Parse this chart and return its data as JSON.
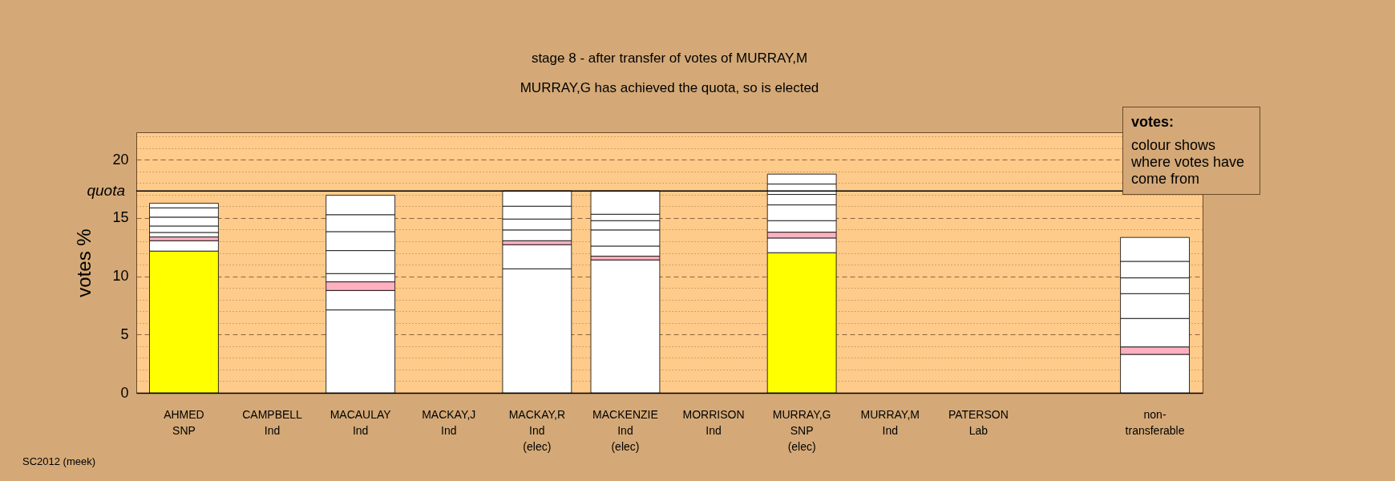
{
  "chart_data": {
    "type": "bar",
    "stacked": true,
    "title": "stage 8 - after transfer of votes of MURRAY,M",
    "subtitle": "MURRAY,G has achieved the quota, so is elected",
    "ylabel": "votes %",
    "categories": [
      "AHMED\nSNP",
      "CAMPBELL\nInd",
      "MACAULAY\nInd",
      "MACKAY,J\nInd",
      "MACKAY,R\nInd\n(elec)",
      "MACKENZIE\nInd\n(elec)",
      "MORRISON\nInd",
      "MURRAY,G\nSNP\n(elec)",
      "MURRAY,M\nInd",
      "PATERSON\nLab",
      null,
      "non-\ntransferable"
    ],
    "series": [
      {
        "values": [
          12.16,
          null,
          7.11,
          null,
          10.64,
          11.4,
          null,
          12.02,
          null,
          null,
          null,
          3.3
        ],
        "colors": [
          "#ffff00",
          null,
          "#ffffff",
          null,
          "#ffffff",
          "#ffffff",
          null,
          "#ffff00",
          null,
          null,
          null,
          "#ffffff"
        ]
      },
      {
        "values": [
          0.89,
          null,
          1.67,
          null,
          2.07,
          0.32,
          null,
          1.26,
          null,
          null,
          null,
          0.64
        ],
        "colors": [
          "#ffffff",
          null,
          "#ffffff",
          null,
          "#ffffff",
          "#ffb0c0",
          null,
          "#ffffff",
          null,
          null,
          null,
          "#ffb0c0"
        ]
      },
      {
        "values": [
          0.32,
          null,
          0.74,
          null,
          0.34,
          0.87,
          null,
          0.5,
          null,
          null,
          null,
          2.44
        ],
        "colors": [
          "#ffb0c0",
          null,
          "#ffb0c0",
          null,
          "#ffb0c0",
          "#ffffff",
          null,
          "#ffb0c0",
          null,
          null,
          null,
          "#ffffff"
        ]
      },
      {
        "values": [
          0.39,
          null,
          0.71,
          null,
          0.92,
          1.38,
          null,
          0.99,
          null,
          null,
          null,
          2.13
        ],
        "colors": [
          "#ffffff",
          null,
          "#ffffff",
          null,
          "#ffffff",
          "#ffffff",
          null,
          "#ffffff",
          null,
          null,
          null,
          "#ffffff"
        ]
      },
      {
        "values": [
          0.55,
          null,
          1.97,
          null,
          0.94,
          0.8,
          null,
          1.35,
          null,
          null,
          null,
          1.35
        ],
        "colors": [
          "#ffffff",
          null,
          "#ffffff",
          null,
          "#ffffff",
          "#ffffff",
          null,
          "#ffffff",
          null,
          null,
          null,
          "#ffffff"
        ]
      },
      {
        "values": [
          0.76,
          null,
          1.63,
          null,
          1.1,
          0.55,
          null,
          0.9,
          null,
          null,
          null,
          1.42
        ],
        "colors": [
          "#ffffff",
          null,
          "#ffffff",
          null,
          "#ffffff",
          "#ffffff",
          null,
          "#ffffff",
          null,
          null,
          null,
          "#ffffff"
        ]
      },
      {
        "values": [
          0.8,
          null,
          1.45,
          null,
          1.31,
          2.0,
          null,
          0.89,
          null,
          null,
          null,
          2.05
        ],
        "colors": [
          "#ffffff",
          null,
          "#ffffff",
          null,
          "#ffffff",
          "#ffffff",
          null,
          "#ffffff",
          null,
          null,
          null,
          "#ffffff"
        ]
      },
      {
        "values": [
          0.39,
          null,
          1.67,
          null,
          null,
          null,
          null,
          0.85,
          null,
          null,
          null,
          null
        ],
        "colors": [
          "#ffffff",
          null,
          "#ffffff",
          null,
          null,
          null,
          null,
          "#ffffff",
          null,
          null,
          null,
          null
        ]
      }
    ],
    "ylim": [
      0,
      22.35
    ],
    "yticks": [
      0,
      {
        "value": 1,
        "label": null
      },
      {
        "value": 2,
        "label": null
      },
      {
        "value": 3,
        "label": null
      },
      {
        "value": 4,
        "label": null
      },
      5,
      {
        "value": 6,
        "label": null
      },
      {
        "value": 7,
        "label": null
      },
      {
        "value": 8,
        "label": null
      },
      {
        "value": 9,
        "label": null
      },
      10,
      {
        "value": 11,
        "label": null
      },
      {
        "value": 12,
        "label": null
      },
      {
        "value": 13,
        "label": null
      },
      {
        "value": 14,
        "label": null
      },
      15,
      {
        "value": 16,
        "label": null
      },
      {
        "value": 17,
        "label": null
      },
      {
        "value": 18,
        "label": null
      },
      {
        "value": 19,
        "label": null
      },
      20,
      {
        "value": 21,
        "label": null
      },
      {
        "value": 22,
        "label": null
      }
    ],
    "grid": true,
    "ref_lines": [
      {
        "axis": "y",
        "value": 17.32,
        "label": "quota"
      }
    ],
    "annotations": [
      "votes:",
      "colour shows where votes have come from",
      "SC2012 (meek)"
    ]
  }
}
